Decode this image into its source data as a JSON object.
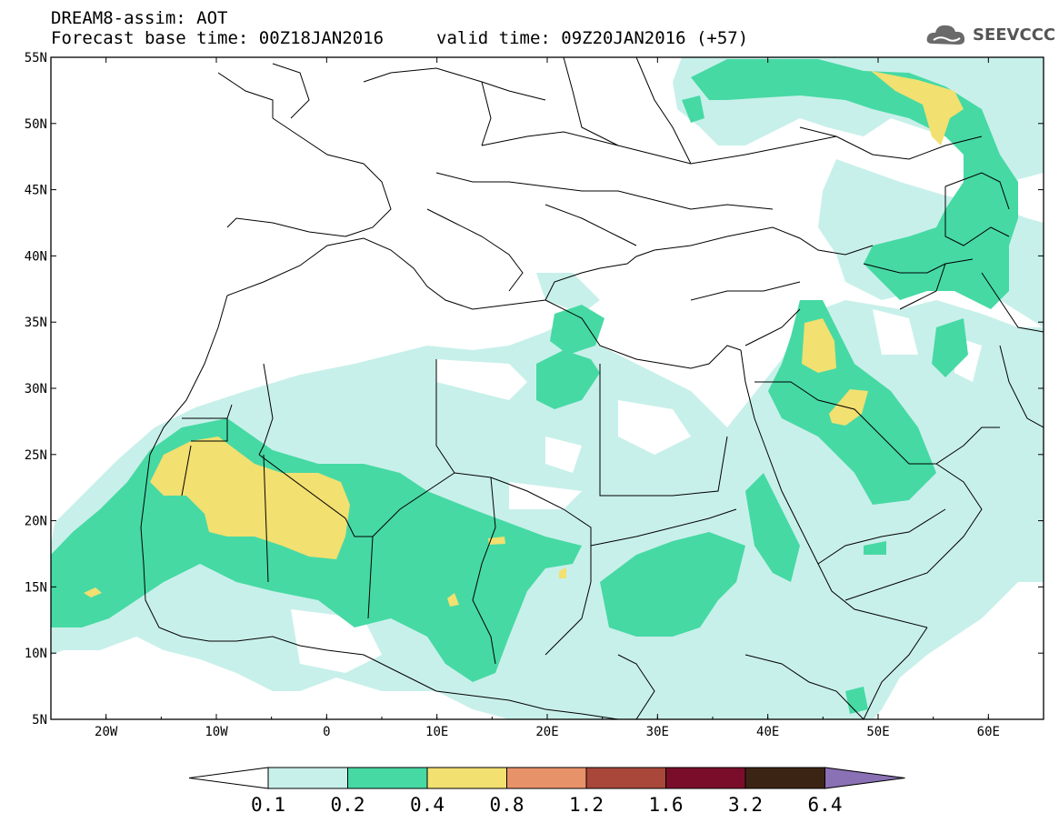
{
  "header": {
    "title": "DREAM8-assim: AOT",
    "base_time": "Forecast base time: 00Z18JAN2016",
    "valid_time": "valid time: 09Z20JAN2016 (+57)"
  },
  "logo": {
    "text": "SEEVCCC",
    "icon": "cloud-icon"
  },
  "map": {
    "lon_range": [
      -25,
      65
    ],
    "lat_range": [
      5,
      55
    ],
    "lon_ticks": [
      "20W",
      "10W",
      "0",
      "10E",
      "20E",
      "30E",
      "40E",
      "50E",
      "60E"
    ],
    "lat_ticks": [
      "5N",
      "10N",
      "15N",
      "20N",
      "25N",
      "30N",
      "35N",
      "40N",
      "45N",
      "50N",
      "55N"
    ]
  },
  "colorbar": {
    "labels": [
      "0.1",
      "0.2",
      "0.4",
      "0.8",
      "1.2",
      "1.6",
      "3.2",
      "6.4"
    ],
    "colors": [
      "#c8f0ea",
      "#46d9a4",
      "#f2e070",
      "#e8926a",
      "#a8473a",
      "#7a0e2a",
      "#3c2414",
      "#8a70b4"
    ],
    "under_color": "#ffffff"
  },
  "legend_colors": {
    "level1": "#c8f0ea",
    "level2": "#46d9a4",
    "level3": "#f2e070"
  }
}
